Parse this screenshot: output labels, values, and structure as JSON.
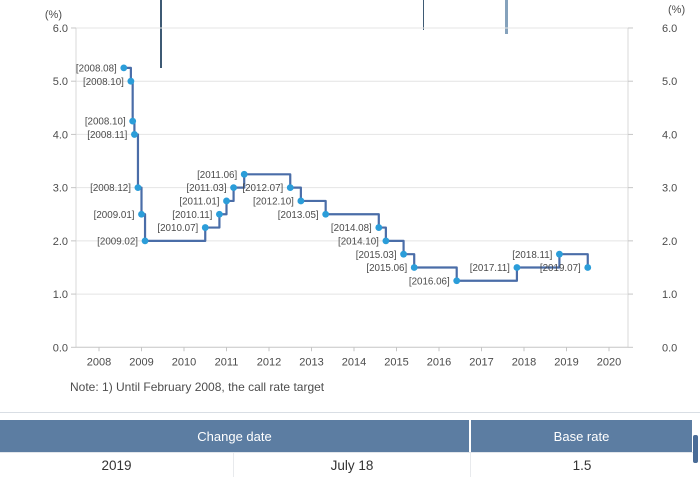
{
  "colors": {
    "line": "#4a6da8",
    "point": "#2b9dd9",
    "grid": "#e4e4e4",
    "axis": "#c6c6c6",
    "border": "#d9d9d9",
    "tick_text": "#4c4c4c",
    "annotation_text": "#4b4b4b",
    "table_header_bg": "#5c7da2",
    "scrollbar_thumb": "#4a6c97"
  },
  "chart_data": {
    "type": "line",
    "step": "after",
    "unit_label": "(%)",
    "note": "Note: 1) Until February 2008, the call rate target",
    "grid": "horizontal",
    "legend": "none",
    "ylim": [
      0,
      6
    ],
    "y_ticks": [
      "0.0",
      "1.0",
      "2.0",
      "3.0",
      "4.0",
      "5.0",
      "6.0"
    ],
    "x_ticks": [
      "2008",
      "2009",
      "2010",
      "2011",
      "2012",
      "2013",
      "2014",
      "2015",
      "2016",
      "2017",
      "2018",
      "2019",
      "2020"
    ],
    "series": [
      {
        "name": "Base rate",
        "points": [
          {
            "label": "[2008.08]",
            "date": "2008.08",
            "value": 5.25
          },
          {
            "label": "[2008.10]",
            "date": "2008.10",
            "value": 5.0
          },
          {
            "label": "[2008.10]",
            "date": "2008.10",
            "value": 4.25
          },
          {
            "label": "[2008.11]",
            "date": "2008.11",
            "value": 4.0
          },
          {
            "label": "[2008.12]",
            "date": "2008.12",
            "value": 3.0
          },
          {
            "label": "[2009.01]",
            "date": "2009.01",
            "value": 2.5
          },
          {
            "label": "[2009.02]",
            "date": "2009.02",
            "value": 2.0
          },
          {
            "label": "[2010.07]",
            "date": "2010.07",
            "value": 2.25
          },
          {
            "label": "[2010.11]",
            "date": "2010.11",
            "value": 2.5
          },
          {
            "label": "[2011.01]",
            "date": "2011.01",
            "value": 2.75
          },
          {
            "label": "[2011.03]",
            "date": "2011.03",
            "value": 3.0
          },
          {
            "label": "[2011.06]",
            "date": "2011.06",
            "value": 3.25
          },
          {
            "label": "[2012.07]",
            "date": "2012.07",
            "value": 3.0
          },
          {
            "label": "[2012.10]",
            "date": "2012.10",
            "value": 2.75
          },
          {
            "label": "[2013.05]",
            "date": "2013.05",
            "value": 2.5
          },
          {
            "label": "[2014.08]",
            "date": "2014.08",
            "value": 2.25
          },
          {
            "label": "[2014.10]",
            "date": "2014.10",
            "value": 2.0
          },
          {
            "label": "[2015.03]",
            "date": "2015.03",
            "value": 1.75
          },
          {
            "label": "[2015.06]",
            "date": "2015.06",
            "value": 1.5
          },
          {
            "label": "[2016.06]",
            "date": "2016.06",
            "value": 1.25
          },
          {
            "label": "[2017.11]",
            "date": "2017.11",
            "value": 1.5
          },
          {
            "label": "[2018.11]",
            "date": "2018.11",
            "value": 1.75
          },
          {
            "label": "[2019.07]",
            "date": "2019.07",
            "value": 1.5
          }
        ]
      }
    ]
  },
  "table": {
    "headers": [
      "Change date",
      "Base rate"
    ],
    "row": {
      "year": "2019",
      "date": "July 18",
      "rate": "1.5"
    }
  }
}
